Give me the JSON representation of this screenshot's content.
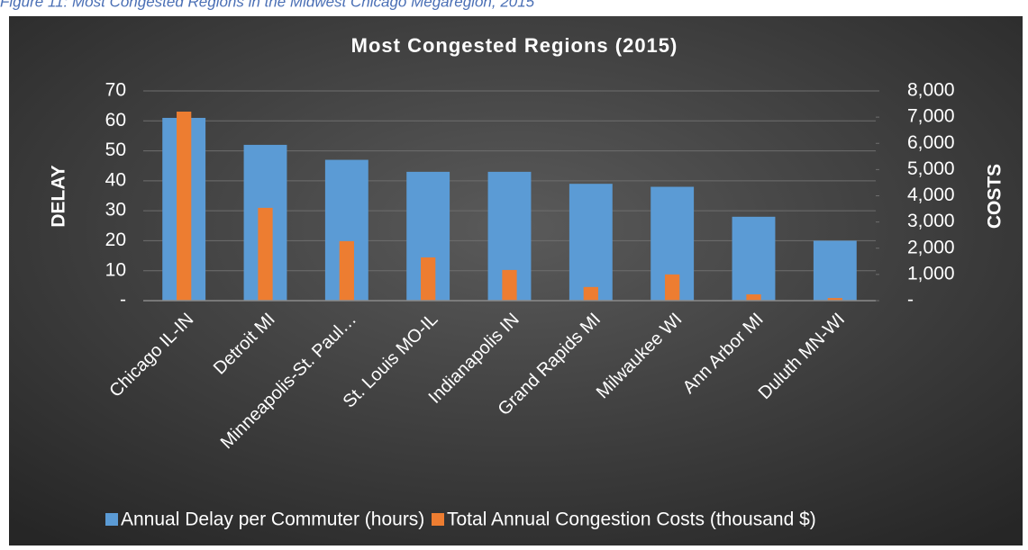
{
  "caption": "Figure 11: Most Congested Regions in the Midwest Chicago Megaregion, 2015",
  "chart_data": {
    "type": "bar",
    "title": "Most Congested Regions (2015)",
    "y_label": "DELAY",
    "y2_label": "COSTS",
    "categories": [
      "Chicago IL-IN",
      "Detroit MI",
      "Minneapolis-St. Paul…",
      "St. Louis MO-IL",
      "Indianapolis IN",
      "Grand Rapids MI",
      "Milwaukee WI",
      "Ann Arbor MI",
      "Duluth MN-WI"
    ],
    "series": [
      {
        "name": "Annual Delay per Commuter (hours)",
        "color": "#5b9bd5",
        "values": [
          61,
          52,
          47,
          43,
          43,
          39,
          38,
          28,
          20
        ]
      },
      {
        "name": "Total Annual Congestion Costs (thousand $)",
        "color": "#ed7d31",
        "axis": "y2",
        "values": [
          7210,
          3540,
          2270,
          1650,
          1170,
          520,
          1000,
          240,
          100
        ]
      }
    ],
    "ylim": [
      0,
      70
    ],
    "yticks": [
      {
        "value": 0,
        "label": "-"
      },
      10,
      20,
      30,
      40,
      50,
      60,
      70
    ],
    "y2lim": [
      0,
      8000
    ],
    "y2ticks": [
      {
        "value": 0,
        "label": "-"
      },
      {
        "value": 1000,
        "label": "1,000"
      },
      {
        "value": 2000,
        "label": "2,000"
      },
      {
        "value": 3000,
        "label": "3,000"
      },
      {
        "value": 4000,
        "label": "4,000"
      },
      {
        "value": 5000,
        "label": "5,000"
      },
      {
        "value": 6000,
        "label": "6,000"
      },
      {
        "value": 7000,
        "label": "7,000"
      },
      {
        "value": 8000,
        "label": "8,000"
      }
    ],
    "grid": true,
    "legend": "bottom"
  }
}
